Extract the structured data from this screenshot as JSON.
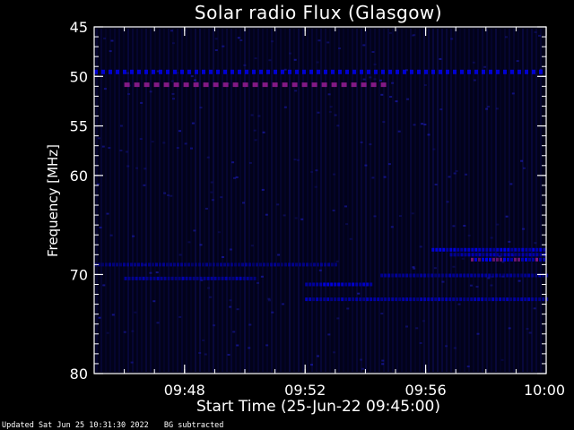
{
  "chart_data": {
    "type": "heatmap",
    "title": "Solar radio Flux (Glasgow)",
    "xlabel": "Start Time (25-Jun-22 09:45:00)",
    "ylabel": "Frequency [MHz]",
    "x_ticks": [
      "09:48",
      "09:52",
      "09:56",
      "10:00"
    ],
    "x_tick_minutes": [
      3,
      7,
      11,
      15
    ],
    "x_range_minutes": [
      0,
      15
    ],
    "y_ticks": [
      45,
      50,
      55,
      60,
      70,
      80
    ],
    "y_range": [
      45,
      80
    ],
    "background": "#000000",
    "colors": {
      "frame": "#ffffff",
      "low": "#0000ff",
      "high": "#8a1a8a"
    },
    "bands": [
      {
        "freq": 49.5,
        "t_start": 0,
        "t_end": 15,
        "intensity": 0.8,
        "dashed": true
      },
      {
        "freq": 50.8,
        "t_start": 1.0,
        "t_end": 9.8,
        "intensity": 0.95,
        "dashed": true,
        "hot": true
      },
      {
        "freq": 67.5,
        "t_start": 11.2,
        "t_end": 15,
        "intensity": 0.9
      },
      {
        "freq": 68.0,
        "t_start": 11.8,
        "t_end": 15,
        "intensity": 0.7
      },
      {
        "freq": 68.5,
        "t_start": 12.5,
        "t_end": 15,
        "intensity": 0.95,
        "hot": true
      },
      {
        "freq": 69.0,
        "t_start": 0,
        "t_end": 8.0,
        "intensity": 0.5
      },
      {
        "freq": 70.1,
        "t_start": 9.5,
        "t_end": 15,
        "intensity": 0.6
      },
      {
        "freq": 70.4,
        "t_start": 1.0,
        "t_end": 5.3,
        "intensity": 0.65
      },
      {
        "freq": 71.0,
        "t_start": 7.0,
        "t_end": 9.2,
        "intensity": 0.85
      },
      {
        "freq": 72.5,
        "t_start": 7.0,
        "t_end": 15,
        "intensity": 0.7
      }
    ]
  },
  "footer": {
    "updated": "Updated Sat Jun 25 10:31:30 2022",
    "note": "BG subtracted"
  }
}
